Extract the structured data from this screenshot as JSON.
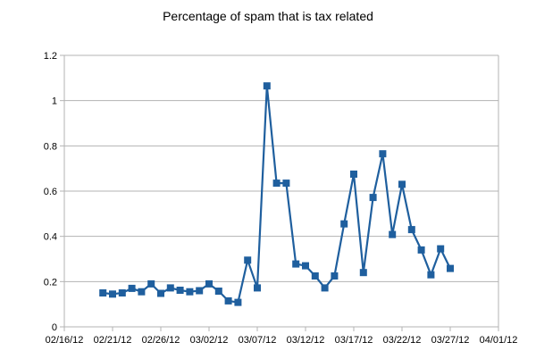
{
  "chart_data": {
    "type": "line",
    "title": "Percentage of spam that is tax related",
    "xlabel": "",
    "ylabel": "",
    "x_tick_labels": [
      "02/16/12",
      "02/21/12",
      "02/26/12",
      "03/02/12",
      "03/07/12",
      "03/12/12",
      "03/17/12",
      "03/22/12",
      "03/27/12",
      "04/01/12"
    ],
    "y_tick_labels": [
      "0",
      "0.2",
      "0.4",
      "0.6",
      "0.8",
      "1",
      "1.2"
    ],
    "xlim": [
      "2012-02-16",
      "2012-04-01"
    ],
    "ylim": [
      0,
      1.2
    ],
    "grid": "horizontal",
    "legend": "none",
    "series": [
      {
        "color": "#1f5f9e",
        "marker": "square",
        "x": [
          "2012-02-20",
          "2012-02-21",
          "2012-02-22",
          "2012-02-23",
          "2012-02-24",
          "2012-02-25",
          "2012-02-26",
          "2012-02-27",
          "2012-02-28",
          "2012-02-29",
          "2012-03-01",
          "2012-03-02",
          "2012-03-03",
          "2012-03-04",
          "2012-03-05",
          "2012-03-06",
          "2012-03-07",
          "2012-03-08",
          "2012-03-09",
          "2012-03-10",
          "2012-03-11",
          "2012-03-12",
          "2012-03-13",
          "2012-03-14",
          "2012-03-15",
          "2012-03-16",
          "2012-03-17",
          "2012-03-18",
          "2012-03-19",
          "2012-03-20",
          "2012-03-21",
          "2012-03-22",
          "2012-03-23",
          "2012-03-24",
          "2012-03-25",
          "2012-03-26",
          "2012-03-27"
        ],
        "values": [
          0.15,
          0.145,
          0.15,
          0.17,
          0.155,
          0.19,
          0.148,
          0.172,
          0.162,
          0.155,
          0.16,
          0.19,
          0.158,
          0.115,
          0.108,
          0.295,
          0.172,
          1.065,
          0.635,
          0.635,
          0.278,
          0.27,
          0.225,
          0.172,
          0.225,
          0.455,
          0.675,
          0.24,
          0.572,
          0.765,
          0.408,
          0.63,
          0.43,
          0.34,
          0.23,
          0.345,
          0.258
        ]
      }
    ]
  }
}
